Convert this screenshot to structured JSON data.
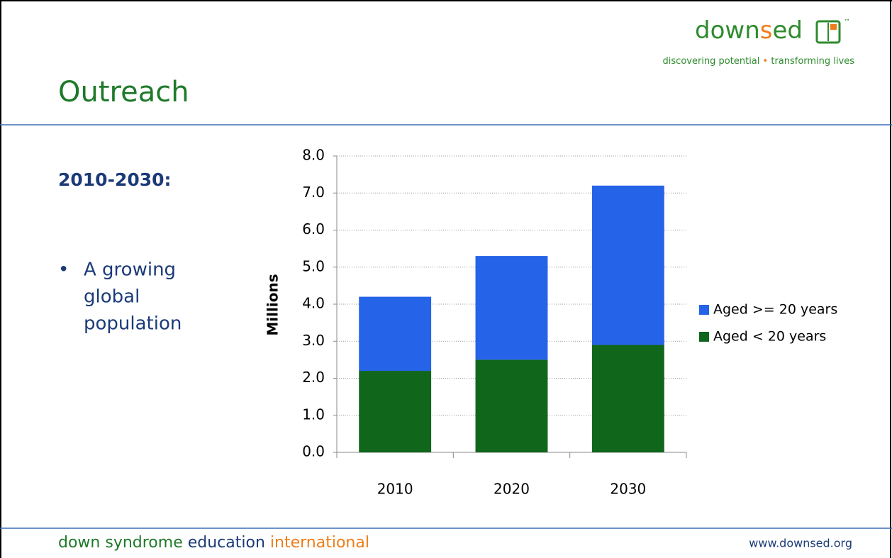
{
  "logo": {
    "parts": [
      "down",
      "s",
      "ed"
    ],
    "tm": "™"
  },
  "tagline": {
    "left": "discovering potential",
    "dot": "•",
    "right": "transforming lives"
  },
  "slide_title": "Outreach",
  "heading": "2010-2030:",
  "bullet": {
    "marker": "•",
    "lines": [
      "A growing",
      "global",
      "population"
    ]
  },
  "footer": {
    "parts": [
      "down syndrome",
      "education",
      "international"
    ],
    "url": "www.downsed.org"
  },
  "chart_data": {
    "type": "stacked_bar",
    "ylabel": "Millions",
    "categories": [
      "2010",
      "2020",
      "2030"
    ],
    "series": [
      {
        "name": "Aged < 20 years",
        "color": "#10661a",
        "values": [
          2.2,
          2.5,
          2.9
        ]
      },
      {
        "name": "Aged >= 20 years",
        "color": "#2563e8",
        "values": [
          2.0,
          2.8,
          4.3
        ]
      }
    ],
    "ylim": [
      0,
      8
    ],
    "yticks": [
      {
        "value": 0,
        "label": "0.0"
      },
      {
        "value": 1,
        "label": "1.0"
      },
      {
        "value": 2,
        "label": "2.0"
      },
      {
        "value": 3,
        "label": "3.0"
      },
      {
        "value": 4,
        "label": "4.0"
      },
      {
        "value": 5,
        "label": "5.0"
      },
      {
        "value": 6,
        "label": "6.0"
      },
      {
        "value": 7,
        "label": "7.0"
      },
      {
        "value": 8,
        "label": "8.0"
      }
    ],
    "grid": true
  }
}
